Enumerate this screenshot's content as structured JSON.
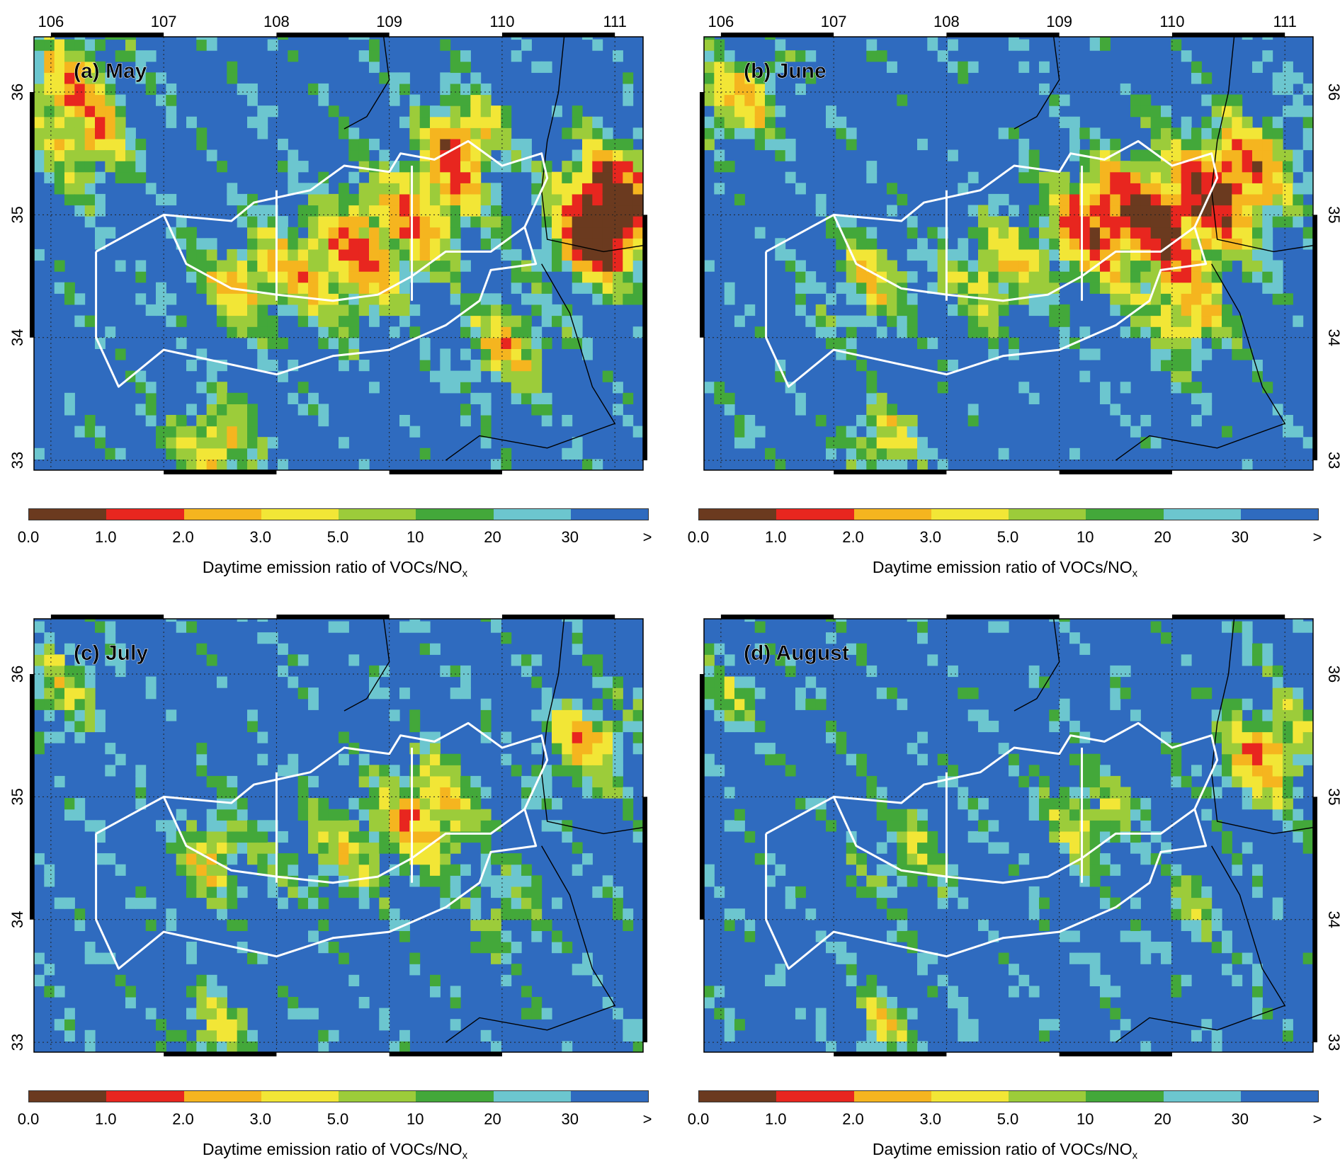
{
  "colorbar": {
    "title": "Daytime emission ratio of VOCs/NO",
    "title_sub": "x",
    "ticks": [
      "0.0",
      "1.0",
      "2.0",
      "3.0",
      "5.0",
      "10",
      "20",
      "30",
      ">"
    ],
    "colors": [
      "#6b3a1f",
      "#e8261f",
      "#f5b51f",
      "#f2e636",
      "#9ccc3a",
      "#43a83a",
      "#6cc6cf",
      "#2f6bbf"
    ]
  },
  "axes": {
    "lon_labels": [
      "106",
      "107",
      "108",
      "109",
      "110",
      "111"
    ],
    "lat_labels": [
      "36",
      "35",
      "34",
      "33"
    ]
  },
  "panels": [
    {
      "label": "(a) May",
      "top_lon_labels": true,
      "left_lat_labels": true,
      "right_lat_labels": false
    },
    {
      "label": "(b) June",
      "top_lon_labels": true,
      "left_lat_labels": false,
      "right_lat_labels": true
    },
    {
      "label": "(c) July",
      "top_lon_labels": false,
      "left_lat_labels": true,
      "right_lat_labels": false
    },
    {
      "label": "(d) August",
      "top_lon_labels": false,
      "left_lat_labels": false,
      "right_lat_labels": true
    }
  ]
}
